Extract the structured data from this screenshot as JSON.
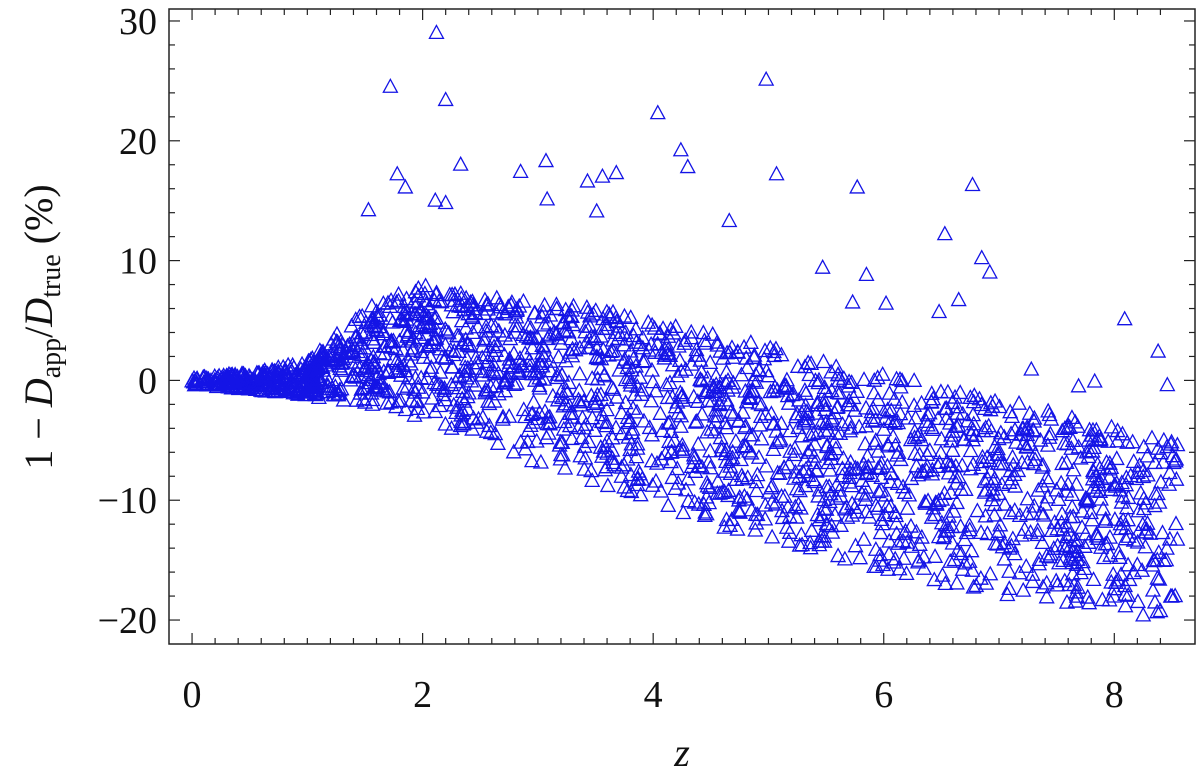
{
  "chart_data": {
    "type": "scatter",
    "marker": "open-triangle",
    "color": "#1414e6",
    "xlabel": "z",
    "ylabel": {
      "prefix": "1 − ",
      "numerator": "D",
      "numerator_sub": "app",
      "slash": "/",
      "denominator": "D",
      "denominator_sub": "true",
      "suffix": " (%)"
    },
    "xlim": [
      -0.2,
      8.7
    ],
    "ylim": [
      -22,
      31
    ],
    "xticks": [
      0,
      2,
      4,
      6,
      8
    ],
    "yticks": [
      -20,
      -10,
      0,
      10,
      20,
      30
    ],
    "xtick_labels": [
      "0",
      "2",
      "4",
      "6",
      "8"
    ],
    "ytick_labels": [
      "−20",
      "−10",
      "0",
      "10",
      "20",
      "30"
    ],
    "grid": false,
    "outliers": [
      {
        "x": 2.12,
        "y": 29.0
      },
      {
        "x": 1.72,
        "y": 24.5
      },
      {
        "x": 2.2,
        "y": 23.4
      },
      {
        "x": 4.98,
        "y": 25.1
      },
      {
        "x": 4.04,
        "y": 22.3
      },
      {
        "x": 4.24,
        "y": 19.2
      },
      {
        "x": 4.3,
        "y": 17.8
      },
      {
        "x": 2.33,
        "y": 18.0
      },
      {
        "x": 1.78,
        "y": 17.2
      },
      {
        "x": 1.85,
        "y": 16.1
      },
      {
        "x": 2.85,
        "y": 17.4
      },
      {
        "x": 3.07,
        "y": 18.3
      },
      {
        "x": 3.43,
        "y": 16.6
      },
      {
        "x": 3.56,
        "y": 17.0
      },
      {
        "x": 3.68,
        "y": 17.3
      },
      {
        "x": 5.07,
        "y": 17.2
      },
      {
        "x": 5.77,
        "y": 16.1
      },
      {
        "x": 6.77,
        "y": 16.3
      },
      {
        "x": 3.08,
        "y": 15.1
      },
      {
        "x": 2.11,
        "y": 15.0
      },
      {
        "x": 2.2,
        "y": 14.8
      },
      {
        "x": 1.53,
        "y": 14.2
      },
      {
        "x": 4.66,
        "y": 13.3
      },
      {
        "x": 3.51,
        "y": 14.1
      },
      {
        "x": 6.53,
        "y": 12.2
      },
      {
        "x": 6.85,
        "y": 10.2
      },
      {
        "x": 6.92,
        "y": 9.0
      },
      {
        "x": 5.47,
        "y": 9.4
      },
      {
        "x": 5.85,
        "y": 8.8
      },
      {
        "x": 5.73,
        "y": 6.5
      },
      {
        "x": 6.65,
        "y": 6.7
      },
      {
        "x": 6.02,
        "y": 6.4
      },
      {
        "x": 6.48,
        "y": 5.7
      },
      {
        "x": 8.09,
        "y": 5.1
      },
      {
        "x": 8.38,
        "y": 2.4
      },
      {
        "x": 7.28,
        "y": 0.9
      },
      {
        "x": 7.83,
        "y": -0.1
      },
      {
        "x": 8.46,
        "y": -0.4
      },
      {
        "x": 7.69,
        "y": -0.5
      }
    ],
    "envelope": [
      {
        "x": 0.0,
        "upper": 0.3,
        "lower": -0.4
      },
      {
        "x": 0.5,
        "upper": 0.6,
        "lower": -0.8
      },
      {
        "x": 1.0,
        "upper": 1.6,
        "lower": -1.3
      },
      {
        "x": 1.5,
        "upper": 6.0,
        "lower": -2.2
      },
      {
        "x": 2.0,
        "upper": 8.0,
        "lower": -3.5
      },
      {
        "x": 2.5,
        "upper": 7.0,
        "lower": -5.0
      },
      {
        "x": 3.0,
        "upper": 6.5,
        "lower": -7.0
      },
      {
        "x": 3.5,
        "upper": 6.0,
        "lower": -8.5
      },
      {
        "x": 4.0,
        "upper": 5.0,
        "lower": -10.5
      },
      {
        "x": 4.5,
        "upper": 4.0,
        "lower": -12.0
      },
      {
        "x": 5.0,
        "upper": 3.0,
        "lower": -13.5
      },
      {
        "x": 5.5,
        "upper": 1.5,
        "lower": -14.5
      },
      {
        "x": 6.0,
        "upper": 0.5,
        "lower": -16.0
      },
      {
        "x": 6.5,
        "upper": -0.5,
        "lower": -17.0
      },
      {
        "x": 7.0,
        "upper": -1.5,
        "lower": -18.0
      },
      {
        "x": 7.5,
        "upper": -2.5,
        "lower": -18.5
      },
      {
        "x": 8.0,
        "upper": -4.0,
        "lower": -19.5
      },
      {
        "x": 8.5,
        "upper": -5.0,
        "lower": -19.8
      }
    ]
  }
}
